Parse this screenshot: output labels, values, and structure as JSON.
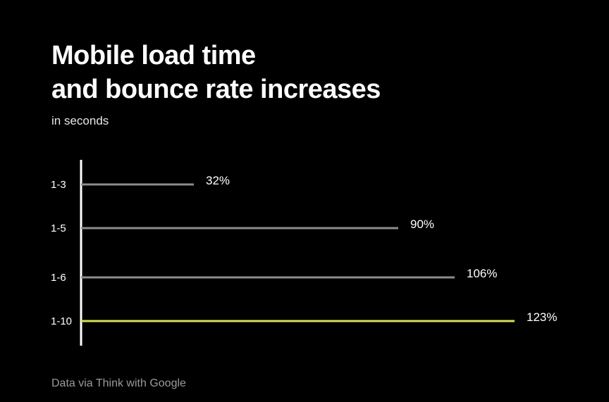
{
  "header": {
    "title_line1": "Mobile load time",
    "title_line2": "and bounce rate increases",
    "subtitle": "in seconds"
  },
  "footer": {
    "source": "Data via Think with Google"
  },
  "colors": {
    "background": "#000000",
    "bar_default": "#8c8c8c",
    "bar_highlight": "#d4e157",
    "axis": "#ffffff",
    "text": "#ffffff"
  },
  "chart_data": {
    "type": "bar",
    "orientation": "horizontal",
    "categories": [
      "1-3",
      "1-5",
      "1-6",
      "1-10"
    ],
    "values": [
      32,
      90,
      106,
      123
    ],
    "value_labels": [
      "32%",
      "90%",
      "106%",
      "123%"
    ],
    "highlight_index": 3,
    "xlim": [
      0,
      123
    ],
    "grid": false,
    "xlabel": "",
    "ylabel": ""
  }
}
